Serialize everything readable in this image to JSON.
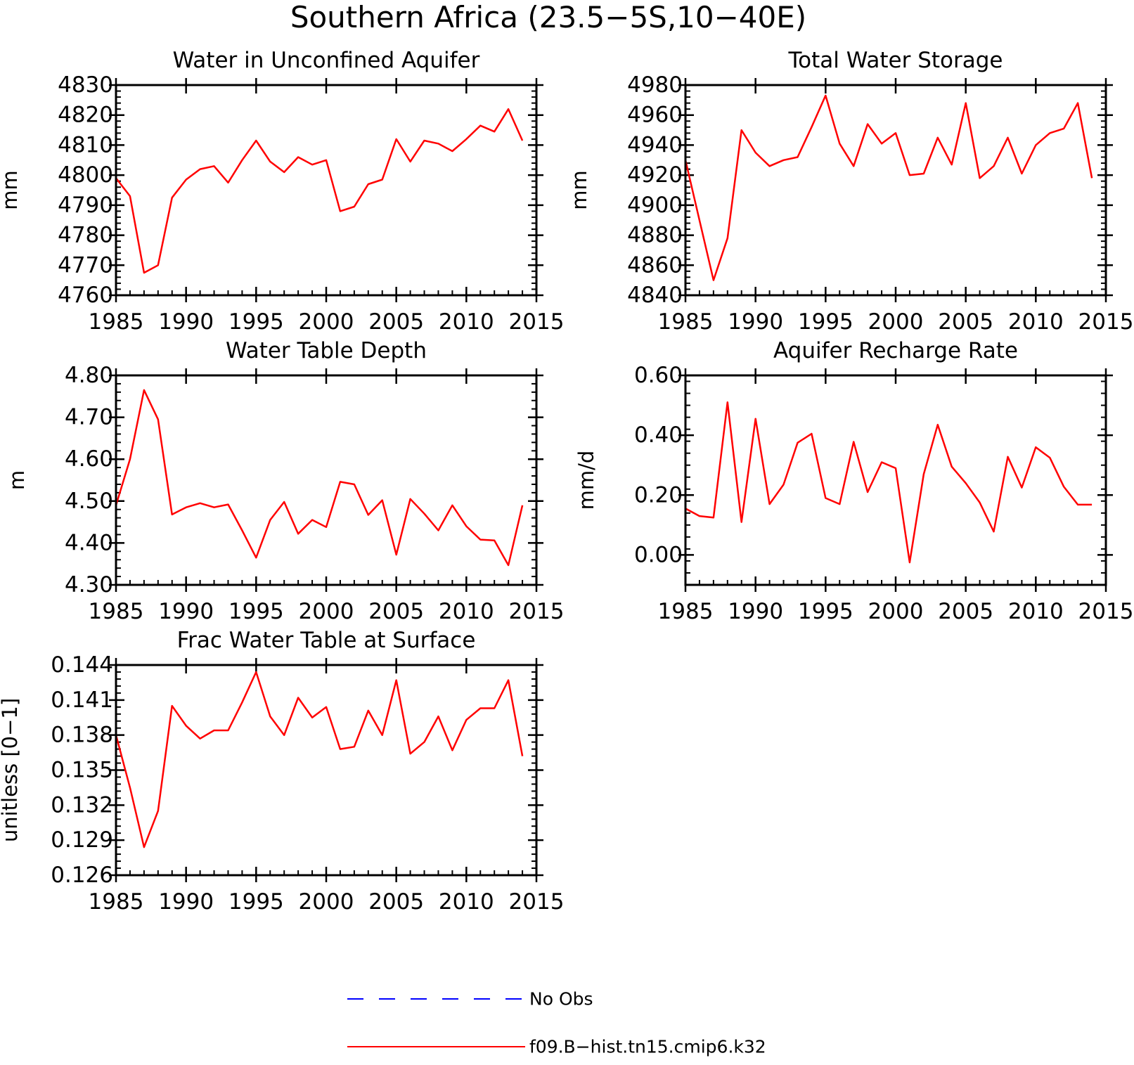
{
  "title": "Southern Africa (23.5−5S,10−40E)",
  "colors": {
    "model": "#ff0000",
    "obs": "#0000ff",
    "axes": "#000000"
  },
  "legend": [
    {
      "label": "No Obs",
      "color": "#0000ff",
      "style": "dashed"
    },
    {
      "label": "f09.B−hist.tn15.cmip6.k32",
      "color": "#ff0000",
      "style": "solid"
    }
  ],
  "chart_data": [
    {
      "type": "line",
      "title": "Water in Unconfined Aquifer",
      "ylabel": "mm",
      "xlim": [
        1985,
        2015
      ],
      "ylim": [
        4760,
        4830
      ],
      "xticks": [
        "1985",
        "1990",
        "1995",
        "2000",
        "2005",
        "2010",
        "2015"
      ],
      "yticks": [
        "4760",
        "4770",
        "4780",
        "4790",
        "4800",
        "4810",
        "4820",
        "4830"
      ],
      "x": [
        1985,
        1986,
        1987,
        1988,
        1989,
        1990,
        1991,
        1992,
        1993,
        1994,
        1995,
        1996,
        1997,
        1998,
        1999,
        2000,
        2001,
        2002,
        2003,
        2004,
        2005,
        2006,
        2007,
        2008,
        2009,
        2010,
        2011,
        2012,
        2013,
        2014
      ],
      "series": [
        {
          "name": "f09.B−hist.tn15.cmip6.k32",
          "values": [
            4799,
            4793,
            4767.5,
            4770,
            4792.5,
            4798.5,
            4802,
            4803,
            4797.5,
            4805,
            4811.5,
            4804.5,
            4801,
            4806,
            4803.5,
            4805,
            4788,
            4789.5,
            4797,
            4798.5,
            4812,
            4804.5,
            4811.5,
            4810.5,
            4808,
            4812,
            4816.5,
            4814.5,
            4822,
            4811.5
          ]
        }
      ]
    },
    {
      "type": "line",
      "title": "Total Water Storage",
      "ylabel": "mm",
      "xlim": [
        1985,
        2015
      ],
      "ylim": [
        4840,
        4980
      ],
      "xticks": [
        "1985",
        "1990",
        "1995",
        "2000",
        "2005",
        "2010",
        "2015"
      ],
      "yticks": [
        "4840",
        "4860",
        "4880",
        "4900",
        "4920",
        "4940",
        "4960",
        "4980"
      ],
      "x": [
        1985,
        1986,
        1987,
        1988,
        1989,
        1990,
        1991,
        1992,
        1993,
        1994,
        1995,
        1996,
        1997,
        1998,
        1999,
        2000,
        2001,
        2002,
        2003,
        2004,
        2005,
        2006,
        2007,
        2008,
        2009,
        2010,
        2011,
        2012,
        2013,
        2014
      ],
      "series": [
        {
          "name": "f09.B−hist.tn15.cmip6.k32",
          "values": [
            4930,
            4890,
            4850,
            4878,
            4950,
            4935,
            4926,
            4930,
            4932,
            4952,
            4973,
            4941,
            4926,
            4954,
            4941,
            4948,
            4920,
            4921,
            4945,
            4927,
            4968,
            4918,
            4926,
            4945,
            4921,
            4940,
            4948,
            4951,
            4968,
            4918
          ]
        }
      ]
    },
    {
      "type": "line",
      "title": "Water Table Depth",
      "ylabel": "m",
      "xlim": [
        1985,
        2015
      ],
      "ylim": [
        4.3,
        4.8
      ],
      "xticks": [
        "1985",
        "1990",
        "1995",
        "2000",
        "2005",
        "2010",
        "2015"
      ],
      "yticks": [
        "4.30",
        "4.40",
        "4.50",
        "4.60",
        "4.70",
        "4.80"
      ],
      "x": [
        1985,
        1986,
        1987,
        1988,
        1989,
        1990,
        1991,
        1992,
        1993,
        1994,
        1995,
        1996,
        1997,
        1998,
        1999,
        2000,
        2001,
        2002,
        2003,
        2004,
        2005,
        2006,
        2007,
        2008,
        2009,
        2010,
        2011,
        2012,
        2013,
        2014
      ],
      "series": [
        {
          "name": "f09.B−hist.tn15.cmip6.k32",
          "values": [
            4.49,
            4.6,
            4.765,
            4.695,
            4.468,
            4.485,
            4.495,
            4.485,
            4.492,
            4.43,
            4.365,
            4.455,
            4.498,
            4.422,
            4.455,
            4.438,
            4.546,
            4.54,
            4.467,
            4.502,
            4.372,
            4.505,
            4.47,
            4.43,
            4.49,
            4.44,
            4.408,
            4.406,
            4.347,
            4.49
          ]
        }
      ]
    },
    {
      "type": "line",
      "title": "Aquifer Recharge Rate",
      "ylabel": "mm/d",
      "xlim": [
        1985,
        2015
      ],
      "ylim": [
        -0.1,
        0.6
      ],
      "xticks": [
        "1985",
        "1990",
        "1995",
        "2000",
        "2005",
        "2010",
        "2015"
      ],
      "yticks": [
        "0.00",
        "0.20",
        "0.40",
        "0.60"
      ],
      "x": [
        1985,
        1986,
        1987,
        1988,
        1989,
        1990,
        1991,
        1992,
        1993,
        1994,
        1995,
        1996,
        1997,
        1998,
        1999,
        2000,
        2001,
        2002,
        2003,
        2004,
        2005,
        2006,
        2007,
        2008,
        2009,
        2010,
        2011,
        2012,
        2013,
        2014
      ],
      "series": [
        {
          "name": "f09.B−hist.tn15.cmip6.k32",
          "values": [
            0.155,
            0.13,
            0.125,
            0.51,
            0.11,
            0.455,
            0.17,
            0.235,
            0.375,
            0.405,
            0.19,
            0.17,
            0.378,
            0.21,
            0.31,
            0.29,
            -0.025,
            0.27,
            0.435,
            0.295,
            0.24,
            0.175,
            0.078,
            0.328,
            0.225,
            0.36,
            0.325,
            0.228,
            0.168,
            0.168
          ]
        }
      ]
    },
    {
      "type": "line",
      "title": "Frac Water Table at Surface",
      "ylabel": "unitless [0−1]",
      "xlim": [
        1985,
        2015
      ],
      "ylim": [
        0.126,
        0.144
      ],
      "xticks": [
        "1985",
        "1990",
        "1995",
        "2000",
        "2005",
        "2010",
        "2015"
      ],
      "yticks": [
        "0.126",
        "0.129",
        "0.132",
        "0.135",
        "0.138",
        "0.141",
        "0.144"
      ],
      "x": [
        1985,
        1986,
        1987,
        1988,
        1989,
        1990,
        1991,
        1992,
        1993,
        1994,
        1995,
        1996,
        1997,
        1998,
        1999,
        2000,
        2001,
        2002,
        2003,
        2004,
        2005,
        2006,
        2007,
        2008,
        2009,
        2010,
        2011,
        2012,
        2013,
        2014
      ],
      "series": [
        {
          "name": "f09.B−hist.tn15.cmip6.k32",
          "values": [
            0.138,
            0.1335,
            0.1284,
            0.1315,
            0.1405,
            0.1388,
            0.1377,
            0.1384,
            0.1384,
            0.1408,
            0.1434,
            0.1396,
            0.138,
            0.1412,
            0.1395,
            0.1404,
            0.1368,
            0.137,
            0.1401,
            0.138,
            0.1427,
            0.1364,
            0.1374,
            0.1396,
            0.1367,
            0.1393,
            0.1403,
            0.1403,
            0.1427,
            0.1362
          ]
        }
      ]
    }
  ]
}
